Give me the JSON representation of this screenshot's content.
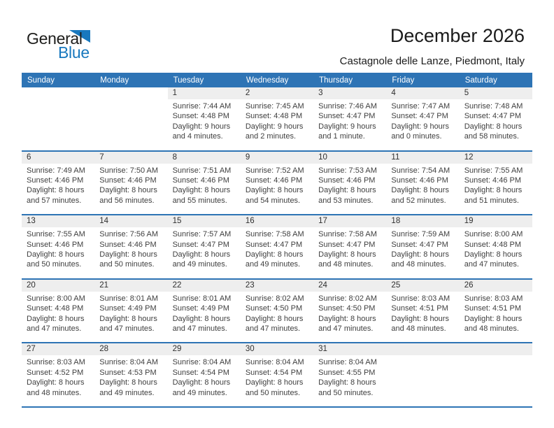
{
  "logo": {
    "general": "General",
    "blue": "Blue"
  },
  "header": {
    "title": "December 2026",
    "subtitle": "Castagnole delle Lanze, Piedmont, Italy"
  },
  "colors": {
    "accent_blue": "#2E74B5",
    "band_gray": "#EEEEEE",
    "logo_blue": "#1878BE",
    "header_text": "#FFFFFF",
    "body_text": "#3F3F3F"
  },
  "weekdays": [
    "Sunday",
    "Monday",
    "Tuesday",
    "Wednesday",
    "Thursday",
    "Friday",
    "Saturday"
  ],
  "weeks": [
    {
      "cells": [
        {
          "day": "",
          "lines": []
        },
        {
          "day": "",
          "lines": []
        },
        {
          "day": "1",
          "lines": [
            "Sunrise: 7:44 AM",
            "Sunset: 4:48 PM",
            "Daylight: 9 hours",
            "and 4 minutes."
          ]
        },
        {
          "day": "2",
          "lines": [
            "Sunrise: 7:45 AM",
            "Sunset: 4:48 PM",
            "Daylight: 9 hours",
            "and 2 minutes."
          ]
        },
        {
          "day": "3",
          "lines": [
            "Sunrise: 7:46 AM",
            "Sunset: 4:47 PM",
            "Daylight: 9 hours",
            "and 1 minute."
          ]
        },
        {
          "day": "4",
          "lines": [
            "Sunrise: 7:47 AM",
            "Sunset: 4:47 PM",
            "Daylight: 9 hours",
            "and 0 minutes."
          ]
        },
        {
          "day": "5",
          "lines": [
            "Sunrise: 7:48 AM",
            "Sunset: 4:47 PM",
            "Daylight: 8 hours",
            "and 58 minutes."
          ]
        }
      ]
    },
    {
      "cells": [
        {
          "day": "6",
          "lines": [
            "Sunrise: 7:49 AM",
            "Sunset: 4:46 PM",
            "Daylight: 8 hours",
            "and 57 minutes."
          ]
        },
        {
          "day": "7",
          "lines": [
            "Sunrise: 7:50 AM",
            "Sunset: 4:46 PM",
            "Daylight: 8 hours",
            "and 56 minutes."
          ]
        },
        {
          "day": "8",
          "lines": [
            "Sunrise: 7:51 AM",
            "Sunset: 4:46 PM",
            "Daylight: 8 hours",
            "and 55 minutes."
          ]
        },
        {
          "day": "9",
          "lines": [
            "Sunrise: 7:52 AM",
            "Sunset: 4:46 PM",
            "Daylight: 8 hours",
            "and 54 minutes."
          ]
        },
        {
          "day": "10",
          "lines": [
            "Sunrise: 7:53 AM",
            "Sunset: 4:46 PM",
            "Daylight: 8 hours",
            "and 53 minutes."
          ]
        },
        {
          "day": "11",
          "lines": [
            "Sunrise: 7:54 AM",
            "Sunset: 4:46 PM",
            "Daylight: 8 hours",
            "and 52 minutes."
          ]
        },
        {
          "day": "12",
          "lines": [
            "Sunrise: 7:55 AM",
            "Sunset: 4:46 PM",
            "Daylight: 8 hours",
            "and 51 minutes."
          ]
        }
      ]
    },
    {
      "cells": [
        {
          "day": "13",
          "lines": [
            "Sunrise: 7:55 AM",
            "Sunset: 4:46 PM",
            "Daylight: 8 hours",
            "and 50 minutes."
          ]
        },
        {
          "day": "14",
          "lines": [
            "Sunrise: 7:56 AM",
            "Sunset: 4:46 PM",
            "Daylight: 8 hours",
            "and 50 minutes."
          ]
        },
        {
          "day": "15",
          "lines": [
            "Sunrise: 7:57 AM",
            "Sunset: 4:47 PM",
            "Daylight: 8 hours",
            "and 49 minutes."
          ]
        },
        {
          "day": "16",
          "lines": [
            "Sunrise: 7:58 AM",
            "Sunset: 4:47 PM",
            "Daylight: 8 hours",
            "and 49 minutes."
          ]
        },
        {
          "day": "17",
          "lines": [
            "Sunrise: 7:58 AM",
            "Sunset: 4:47 PM",
            "Daylight: 8 hours",
            "and 48 minutes."
          ]
        },
        {
          "day": "18",
          "lines": [
            "Sunrise: 7:59 AM",
            "Sunset: 4:47 PM",
            "Daylight: 8 hours",
            "and 48 minutes."
          ]
        },
        {
          "day": "19",
          "lines": [
            "Sunrise: 8:00 AM",
            "Sunset: 4:48 PM",
            "Daylight: 8 hours",
            "and 47 minutes."
          ]
        }
      ]
    },
    {
      "cells": [
        {
          "day": "20",
          "lines": [
            "Sunrise: 8:00 AM",
            "Sunset: 4:48 PM",
            "Daylight: 8 hours",
            "and 47 minutes."
          ]
        },
        {
          "day": "21",
          "lines": [
            "Sunrise: 8:01 AM",
            "Sunset: 4:49 PM",
            "Daylight: 8 hours",
            "and 47 minutes."
          ]
        },
        {
          "day": "22",
          "lines": [
            "Sunrise: 8:01 AM",
            "Sunset: 4:49 PM",
            "Daylight: 8 hours",
            "and 47 minutes."
          ]
        },
        {
          "day": "23",
          "lines": [
            "Sunrise: 8:02 AM",
            "Sunset: 4:50 PM",
            "Daylight: 8 hours",
            "and 47 minutes."
          ]
        },
        {
          "day": "24",
          "lines": [
            "Sunrise: 8:02 AM",
            "Sunset: 4:50 PM",
            "Daylight: 8 hours",
            "and 47 minutes."
          ]
        },
        {
          "day": "25",
          "lines": [
            "Sunrise: 8:03 AM",
            "Sunset: 4:51 PM",
            "Daylight: 8 hours",
            "and 48 minutes."
          ]
        },
        {
          "day": "26",
          "lines": [
            "Sunrise: 8:03 AM",
            "Sunset: 4:51 PM",
            "Daylight: 8 hours",
            "and 48 minutes."
          ]
        }
      ]
    },
    {
      "cells": [
        {
          "day": "27",
          "lines": [
            "Sunrise: 8:03 AM",
            "Sunset: 4:52 PM",
            "Daylight: 8 hours",
            "and 48 minutes."
          ]
        },
        {
          "day": "28",
          "lines": [
            "Sunrise: 8:04 AM",
            "Sunset: 4:53 PM",
            "Daylight: 8 hours",
            "and 49 minutes."
          ]
        },
        {
          "day": "29",
          "lines": [
            "Sunrise: 8:04 AM",
            "Sunset: 4:54 PM",
            "Daylight: 8 hours",
            "and 49 minutes."
          ]
        },
        {
          "day": "30",
          "lines": [
            "Sunrise: 8:04 AM",
            "Sunset: 4:54 PM",
            "Daylight: 8 hours",
            "and 50 minutes."
          ]
        },
        {
          "day": "31",
          "lines": [
            "Sunrise: 8:04 AM",
            "Sunset: 4:55 PM",
            "Daylight: 8 hours",
            "and 50 minutes."
          ]
        },
        {
          "day": "",
          "lines": []
        },
        {
          "day": "",
          "lines": []
        }
      ]
    }
  ]
}
